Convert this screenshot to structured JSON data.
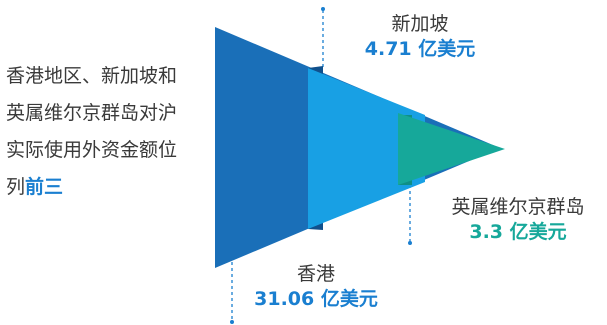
{
  "description": {
    "text": "香港地区、新加坡和英属维尔京群岛对沪实际使用外资金额位列",
    "highlight": "前三"
  },
  "regions": [
    {
      "name": "香港",
      "value": "31.06 亿美元",
      "color": "#1a6fb8"
    },
    {
      "name": "新加坡",
      "value": "4.71 亿美元",
      "color": "#18a0e4"
    },
    {
      "name": "英属维尔京群岛",
      "value": "3.3 亿美元",
      "color": "#16a89a"
    }
  ]
}
